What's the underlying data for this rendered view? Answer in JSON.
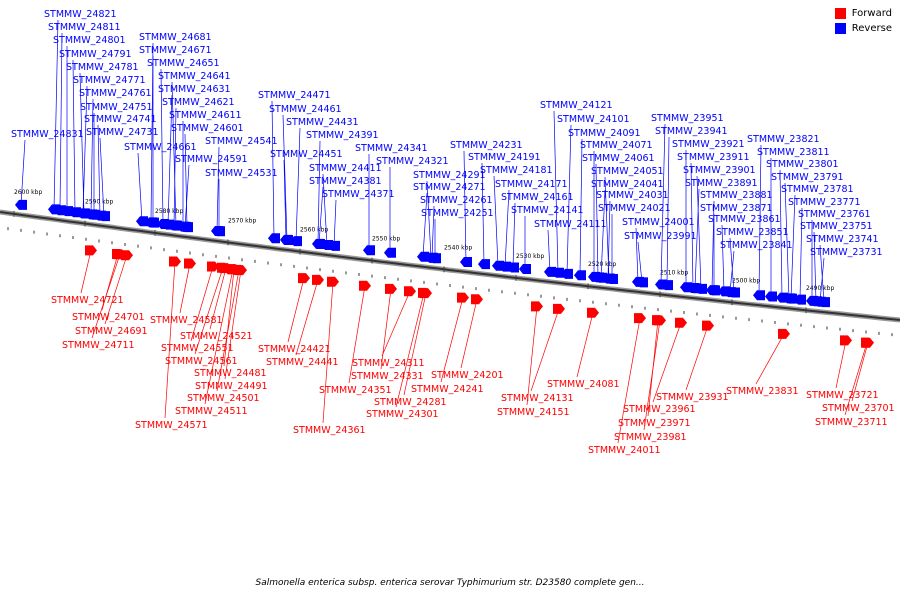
{
  "legend": [
    {
      "label": "Forward",
      "color": "#ff0000"
    },
    {
      "label": "Reverse",
      "color": "#0000ff"
    }
  ],
  "caption": "Salmonella enterica subsp. enterica serovar Typhimurium str. D23580 complete gen...",
  "axis_ticks": [
    "2600 kbp",
    "2590 kbp",
    "2580 kbp",
    "2570 kbp",
    "2560 kbp",
    "2550 kbp",
    "2540 kbp",
    "2530 kbp",
    "2520 kbp",
    "2510 kbp",
    "2500 kbp",
    "2490 kbp"
  ],
  "reverse_genes": [
    "STMMW_24821",
    "STMMW_24811",
    "STMMW_24801",
    "STMMW_24791",
    "STMMW_24781",
    "STMMW_24771",
    "STMMW_24761",
    "STMMW_24751",
    "STMMW_24741",
    "STMMW_24731",
    "STMMW_24831",
    "STMMW_24681",
    "STMMW_24671",
    "STMMW_24651",
    "STMMW_24641",
    "STMMW_24631",
    "STMMW_24621",
    "STMMW_24611",
    "STMMW_24601",
    "STMMW_24661",
    "STMMW_24591",
    "STMMW_24541",
    "STMMW_24531",
    "STMMW_24471",
    "STMMW_24461",
    "STMMW_24431",
    "STMMW_24391",
    "STMMW_24341",
    "STMMW_24451",
    "STMMW_24411",
    "STMMW_24381",
    "STMMW_24371",
    "STMMW_24321",
    "STMMW_24231",
    "STMMW_24291",
    "STMMW_24271",
    "STMMW_24261",
    "STMMW_24251",
    "STMMW_24191",
    "STMMW_24181",
    "STMMW_24171",
    "STMMW_24161",
    "STMMW_24141",
    "STMMW_24111",
    "STMMW_24121",
    "STMMW_24101",
    "STMMW_24091",
    "STMMW_24071",
    "STMMW_24061",
    "STMMW_24051",
    "STMMW_24041",
    "STMMW_24031",
    "STMMW_24021",
    "STMMW_24001",
    "STMMW_23991",
    "STMMW_23951",
    "STMMW_23941",
    "STMMW_23921",
    "STMMW_23911",
    "STMMW_23901",
    "STMMW_23891",
    "STMMW_23881",
    "STMMW_23871",
    "STMMW_23861",
    "STMMW_23851",
    "STMMW_23841",
    "STMMW_23821",
    "STMMW_23811",
    "STMMW_23801",
    "STMMW_23791",
    "STMMW_23781",
    "STMMW_23771",
    "STMMW_23761",
    "STMMW_23751",
    "STMMW_23741",
    "STMMW_23731"
  ],
  "forward_genes": [
    "STMMW_24721",
    "STMMW_24701",
    "STMMW_24691",
    "STMMW_24711",
    "STMMW_24581",
    "STMMW_24521",
    "STMMW_24551",
    "STMMW_24561",
    "STMMW_24481",
    "STMMW_24491",
    "STMMW_24501",
    "STMMW_24511",
    "STMMW_24571",
    "STMMW_24421",
    "STMMW_24441",
    "STMMW_24311",
    "STMMW_24331",
    "STMMW_24351",
    "STMMW_24281",
    "STMMW_24301",
    "STMMW_24361",
    "STMMW_24201",
    "STMMW_24241",
    "STMMW_24131",
    "STMMW_24151",
    "STMMW_24081",
    "STMMW_23931",
    "STMMW_23961",
    "STMMW_23971",
    "STMMW_23981",
    "STMMW_24011",
    "STMMW_23831",
    "STMMW_23721",
    "STMMW_23701",
    "STMMW_23711"
  ]
}
